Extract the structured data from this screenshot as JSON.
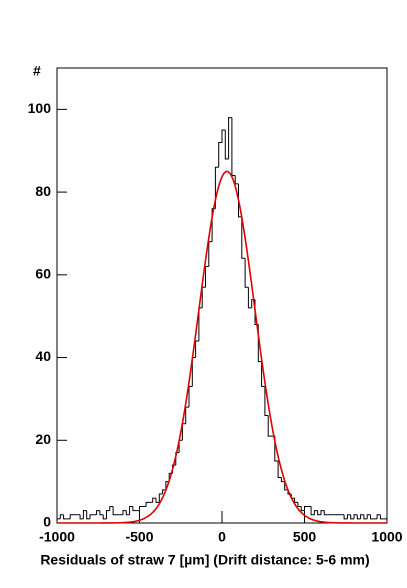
{
  "chart_data": {
    "type": "histogram",
    "xlabel": "Residuals of straw 7 [µm] (Drift distance: 5-6 mm)",
    "ylabel": "#",
    "bins": [
      -1000,
      -980,
      -960,
      -940,
      -920,
      -900,
      -880,
      -860,
      -840,
      -820,
      -800,
      -780,
      -760,
      -740,
      -720,
      -700,
      -680,
      -660,
      -640,
      -620,
      -600,
      -580,
      -560,
      -540,
      -520,
      -500,
      -480,
      -460,
      -440,
      -420,
      -400,
      -380,
      -360,
      -340,
      -320,
      -300,
      -280,
      -260,
      -240,
      -220,
      -200,
      -180,
      -160,
      -140,
      -120,
      -100,
      -80,
      -60,
      -40,
      -20,
      0,
      20,
      40,
      60,
      80,
      100,
      120,
      140,
      160,
      180,
      200,
      220,
      240,
      260,
      280,
      300,
      320,
      340,
      360,
      380,
      400,
      420,
      440,
      460,
      480,
      500,
      520,
      540,
      560,
      580,
      600,
      620,
      640,
      660,
      680,
      700,
      720,
      740,
      760,
      780,
      800,
      820,
      840,
      860,
      880,
      900,
      920,
      940,
      960,
      980,
      1000
    ],
    "values": [
      1,
      2,
      1,
      1,
      2,
      2,
      2,
      1,
      3,
      1,
      2,
      2,
      3,
      2,
      1,
      3,
      4,
      2,
      2,
      2,
      3,
      2,
      4,
      3,
      3,
      4,
      4,
      5,
      5,
      6,
      5,
      7,
      8,
      10,
      12,
      14,
      17,
      20,
      24,
      28,
      33,
      40,
      44,
      52,
      57,
      62,
      68,
      76,
      86,
      92,
      95,
      88,
      98,
      84,
      82,
      74,
      64,
      57,
      52,
      54,
      48,
      39,
      33,
      26,
      21,
      21,
      15,
      11,
      10,
      8,
      7,
      6,
      5,
      4,
      3,
      4,
      4,
      2,
      3,
      2,
      3,
      2,
      2,
      2,
      2,
      2,
      2,
      1,
      2,
      1,
      2,
      1,
      2,
      1,
      2,
      1,
      1,
      2,
      1,
      1
    ],
    "color": "#000000",
    "fit": {
      "amplitude": 85,
      "mean": 30,
      "sigma": 170,
      "color": "#e00000"
    },
    "xlim": [
      -1000,
      1000
    ],
    "xticks": [
      -1000,
      -500,
      0,
      500,
      1000
    ],
    "ylim": [
      0,
      110
    ],
    "yticks": [
      0,
      20,
      40,
      60,
      80,
      100
    ]
  }
}
